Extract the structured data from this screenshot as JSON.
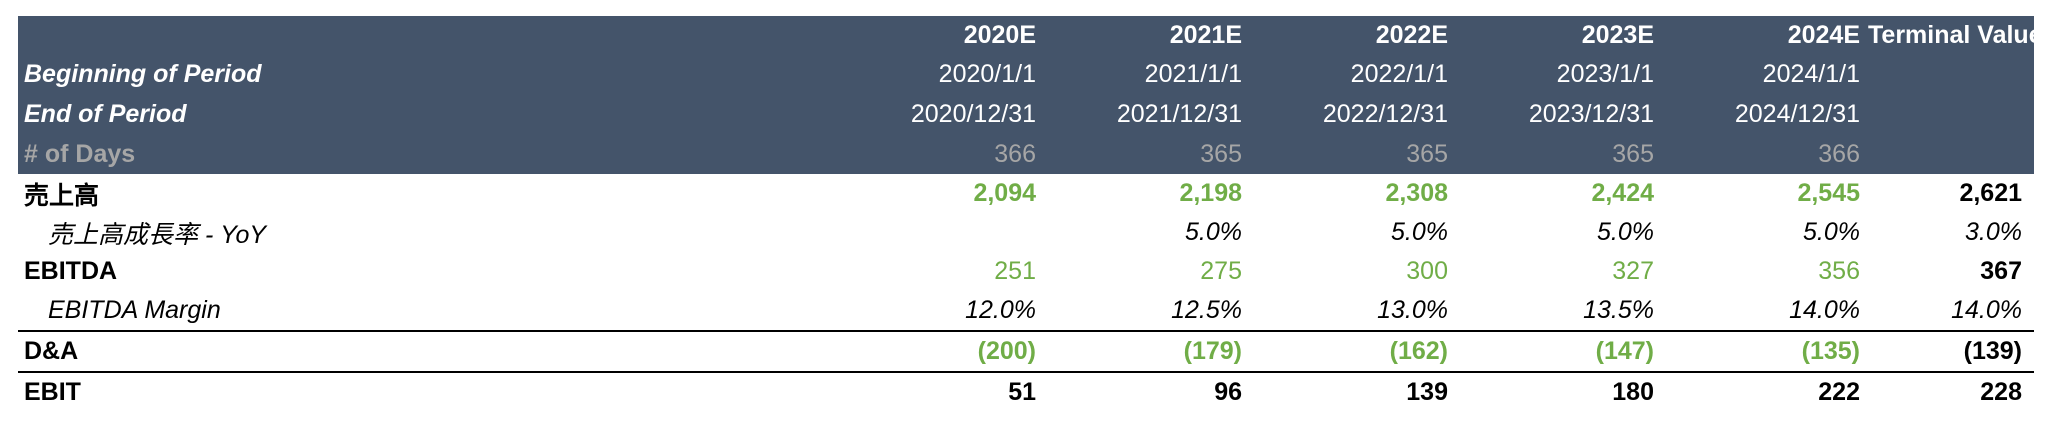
{
  "header": {
    "label_blank": "",
    "years": [
      "2020E",
      "2021E",
      "2022E",
      "2023E",
      "2024E"
    ],
    "terminal": "Terminal Value",
    "begin_label": "Beginning of Period",
    "begin": [
      "2020/1/1",
      "2021/1/1",
      "2022/1/1",
      "2023/1/1",
      "2024/1/1"
    ],
    "end_label": "End of Period",
    "end": [
      "2020/12/31",
      "2021/12/31",
      "2022/12/31",
      "2023/12/31",
      "2024/12/31"
    ],
    "days_label": "# of Days",
    "days": [
      "366",
      "365",
      "365",
      "365",
      "366"
    ]
  },
  "rows": {
    "sales": {
      "label": "売上高",
      "values": [
        "2,094",
        "2,198",
        "2,308",
        "2,424",
        "2,545"
      ],
      "terminal": "2,621"
    },
    "sales_growth": {
      "label": "売上高成長率 - YoY",
      "values": [
        "",
        "5.0%",
        "5.0%",
        "5.0%",
        "5.0%"
      ],
      "terminal": "3.0%"
    },
    "ebitda": {
      "label": "EBITDA",
      "values": [
        "251",
        "275",
        "300",
        "327",
        "356"
      ],
      "terminal": "367"
    },
    "ebitda_margin": {
      "label": "EBITDA Margin",
      "values": [
        "12.0%",
        "12.5%",
        "13.0%",
        "13.5%",
        "14.0%"
      ],
      "terminal": "14.0%"
    },
    "da": {
      "label": "D&A",
      "values": [
        "(200)",
        "(179)",
        "(162)",
        "(147)",
        "(135)"
      ],
      "terminal": "(139)"
    },
    "ebit": {
      "label": "EBIT",
      "values": [
        "51",
        "96",
        "139",
        "180",
        "222"
      ],
      "terminal": "228"
    }
  },
  "colors": {
    "header_bg": "#44546a",
    "header_text": "#ffffff",
    "days_text": "#a6a6a6",
    "input_green": "#70ad47",
    "text": "#000000"
  }
}
